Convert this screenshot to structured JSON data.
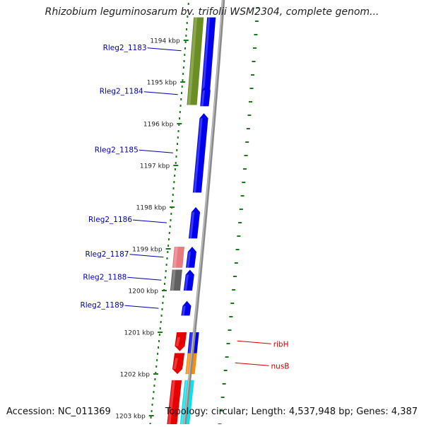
{
  "title": "Rhizobium leguminosarum bv. trifolii WSM2304, complete genom...",
  "footer": {
    "accession_label": "Accession:",
    "accession": "NC_011369",
    "topology_label": "Topology:",
    "topology": "circular",
    "length_label": "Length:",
    "length": "4,537,948 bp",
    "genes_label": "Genes:",
    "genes": "4,387"
  },
  "scale": {
    "ticks": [
      {
        "kbp": 1194,
        "label": "1194 kbp"
      },
      {
        "kbp": 1195,
        "label": "1195 kbp"
      },
      {
        "kbp": 1196,
        "label": "1196 kbp"
      },
      {
        "kbp": 1197,
        "label": "1197 kbp"
      },
      {
        "kbp": 1198,
        "label": "1198 kbp"
      },
      {
        "kbp": 1199,
        "label": "1199 kbp"
      },
      {
        "kbp": 1200,
        "label": "1200 kbp"
      },
      {
        "kbp": 1201,
        "label": "1201 kbp"
      },
      {
        "kbp": 1202,
        "label": "1202 kbp"
      },
      {
        "kbp": 1203,
        "label": "1203 kbp"
      }
    ]
  },
  "colors": {
    "forward_gene": "#0000ee",
    "reverse_gene": "#e60000",
    "cog_olive": "#6b8e23",
    "cog_pink": "#e8797f",
    "cog_gray": "#606060",
    "cog_orange": "#ff8c00",
    "cog_cyan": "#00e5ee",
    "backbone": "#8a8a8a",
    "tick_green": "#1a7a1a",
    "label_blue": "#0000aa",
    "label_red": "#cc0000"
  },
  "genes": [
    {
      "name": "",
      "start": 1193.45,
      "end": 1195.55,
      "strand": "+",
      "track": "forward",
      "color": "forward_gene",
      "arrow": false
    },
    {
      "name": "Rleg2_1183",
      "start": 1193.45,
      "end": 1195.05,
      "strand": "+",
      "track": "cog",
      "color": "cog_olive",
      "arrow": false
    },
    {
      "name": "Rleg2_1184",
      "start": 1195.05,
      "end": 1195.55,
      "strand": "+",
      "track": "cog",
      "color": "cog_olive",
      "arrow": false
    },
    {
      "name": "",
      "start": 1195.08,
      "end": 1195.58,
      "strand": "+",
      "track": "forward",
      "color": "forward_gene",
      "arrow": true
    },
    {
      "name": "Rleg2_1185",
      "start": 1195.75,
      "end": 1197.65,
      "strand": "+",
      "track": "forward",
      "color": "forward_gene",
      "arrow": true
    },
    {
      "name": "Rleg2_1186",
      "start": 1198.0,
      "end": 1198.75,
      "strand": "+",
      "track": "forward",
      "color": "forward_gene",
      "arrow": true
    },
    {
      "name": "Rleg2_1187",
      "start": 1198.95,
      "end": 1199.45,
      "strand": "+",
      "track": "cog",
      "color": "cog_pink",
      "arrow": false
    },
    {
      "name": "",
      "start": 1198.95,
      "end": 1199.45,
      "strand": "+",
      "track": "forward",
      "color": "forward_gene",
      "arrow": true
    },
    {
      "name": "Rleg2_1188",
      "start": 1199.5,
      "end": 1200.0,
      "strand": "+",
      "track": "cog",
      "color": "cog_gray",
      "arrow": false
    },
    {
      "name": "",
      "start": 1199.5,
      "end": 1200.0,
      "strand": "+",
      "track": "forward",
      "color": "forward_gene",
      "arrow": true
    },
    {
      "name": "Rleg2_1189",
      "start": 1200.25,
      "end": 1200.6,
      "strand": "+",
      "track": "forward",
      "color": "forward_gene",
      "arrow": true
    },
    {
      "name": "ribH",
      "start": 1201.0,
      "end": 1201.45,
      "strand": "-",
      "track": "reverse",
      "color": "reverse_gene",
      "arrow": true
    },
    {
      "name": "",
      "start": 1201.0,
      "end": 1201.5,
      "strand": "-",
      "track": "reverse_cog",
      "color": "forward_gene",
      "arrow": false
    },
    {
      "name": "nusB",
      "start": 1201.5,
      "end": 1202.0,
      "strand": "-",
      "track": "reverse",
      "color": "reverse_gene",
      "arrow": true
    },
    {
      "name": "",
      "start": 1201.5,
      "end": 1202.0,
      "strand": "-",
      "track": "reverse_cog",
      "color": "cog_orange",
      "arrow": false
    },
    {
      "name": "",
      "start": 1202.15,
      "end": 1203.5,
      "strand": "-",
      "track": "reverse",
      "color": "reverse_gene",
      "arrow": false
    },
    {
      "name": "",
      "start": 1202.15,
      "end": 1203.5,
      "strand": "-",
      "track": "reverse_cog",
      "color": "cog_cyan",
      "arrow": false
    }
  ]
}
